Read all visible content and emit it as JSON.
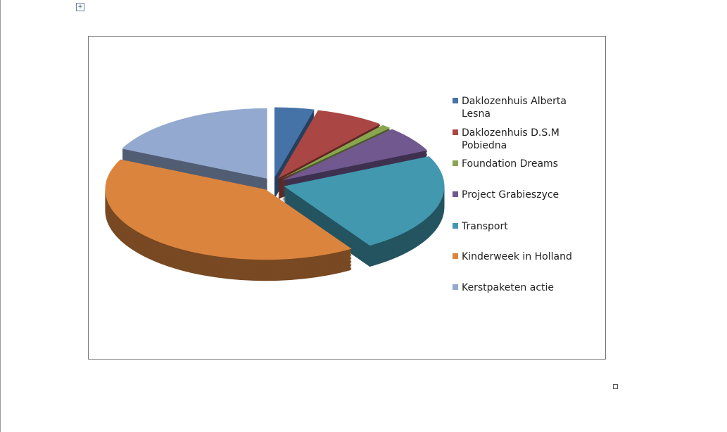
{
  "chart_data": {
    "type": "pie",
    "categories": [
      "Daklozenhuis Alberta Lesna",
      "Daklozenhuis D.S.M Pobiedna",
      "Foundation Dreams",
      "Project Grabieszyce",
      "Transport",
      "Kinderweek in Holland",
      "Kerstpaketen actie"
    ],
    "values": [
      4,
      7,
      1,
      6,
      23,
      41,
      18
    ],
    "colors": [
      "#4572a7",
      "#aa4643",
      "#89a54e",
      "#71588f",
      "#4198af",
      "#db843d",
      "#93a9cf"
    ],
    "legend": "right"
  }
}
